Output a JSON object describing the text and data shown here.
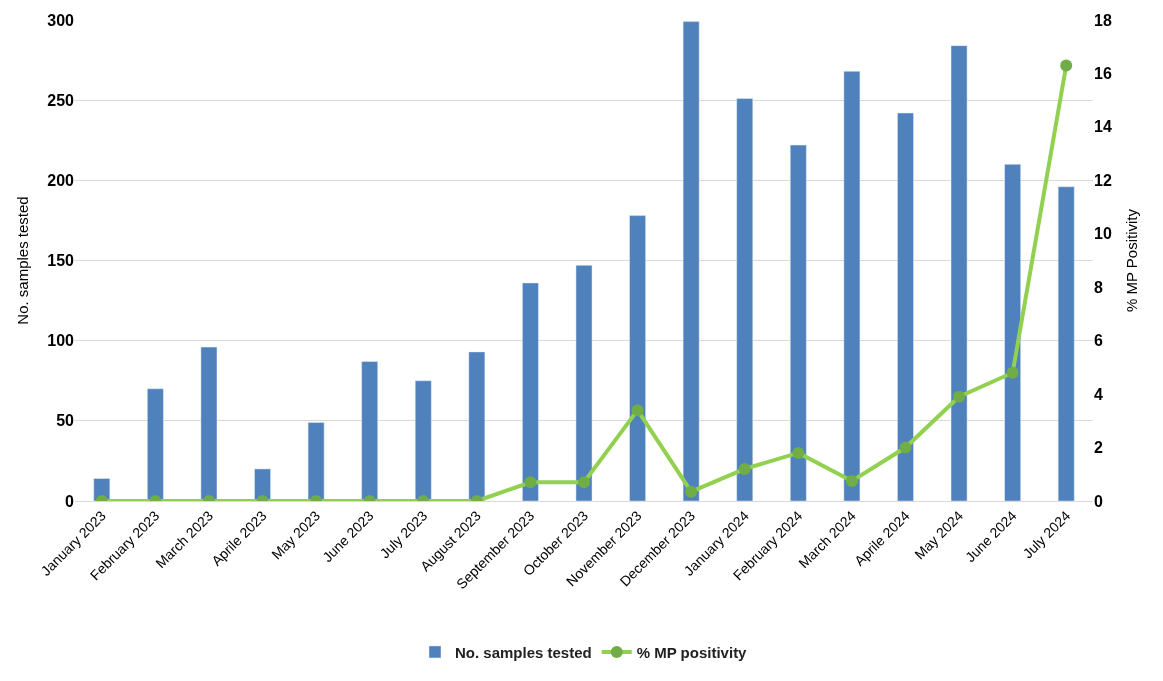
{
  "chart_data": {
    "type": "bar",
    "categories": [
      "January 2023",
      "February 2023",
      "March 2023",
      "Aprile 2023",
      "May 2023",
      "June 2023",
      "July 2023",
      "August 2023",
      "September 2023",
      "October 2023",
      "November 2023",
      "December 2023",
      "January 2024",
      "February 2024",
      "March 2024",
      "Aprile 2024",
      "May 2024",
      "June 2024",
      "July 2024"
    ],
    "series": [
      {
        "name": "No. samples tested",
        "color": "#4f81bd",
        "values": [
          14,
          70,
          96,
          20,
          49,
          87,
          75,
          93,
          136,
          147,
          178,
          299,
          251,
          222,
          268,
          242,
          284,
          210,
          196
        ]
      },
      {
        "name": "% MP positivity",
        "type": "line",
        "axis": "y2",
        "color": "#92d050",
        "values": [
          0,
          0,
          0,
          0,
          0,
          0,
          0,
          0,
          0.7,
          0.7,
          3.4,
          0.35,
          1.2,
          1.8,
          0.75,
          2.0,
          3.9,
          4.8,
          16.3
        ]
      }
    ],
    "ylabel": "No. samples tested",
    "y2label": "% MP Positivity",
    "ylim": [
      0,
      300
    ],
    "yticks": [
      0,
      50,
      100,
      150,
      200,
      250,
      300
    ],
    "y2lim": [
      0,
      18
    ],
    "y2ticks": [
      0,
      2,
      4,
      6,
      8,
      10,
      12,
      14,
      16,
      18
    ],
    "grid": "y",
    "legend": "bottom",
    "marker": "circle",
    "line_style": "solid"
  }
}
